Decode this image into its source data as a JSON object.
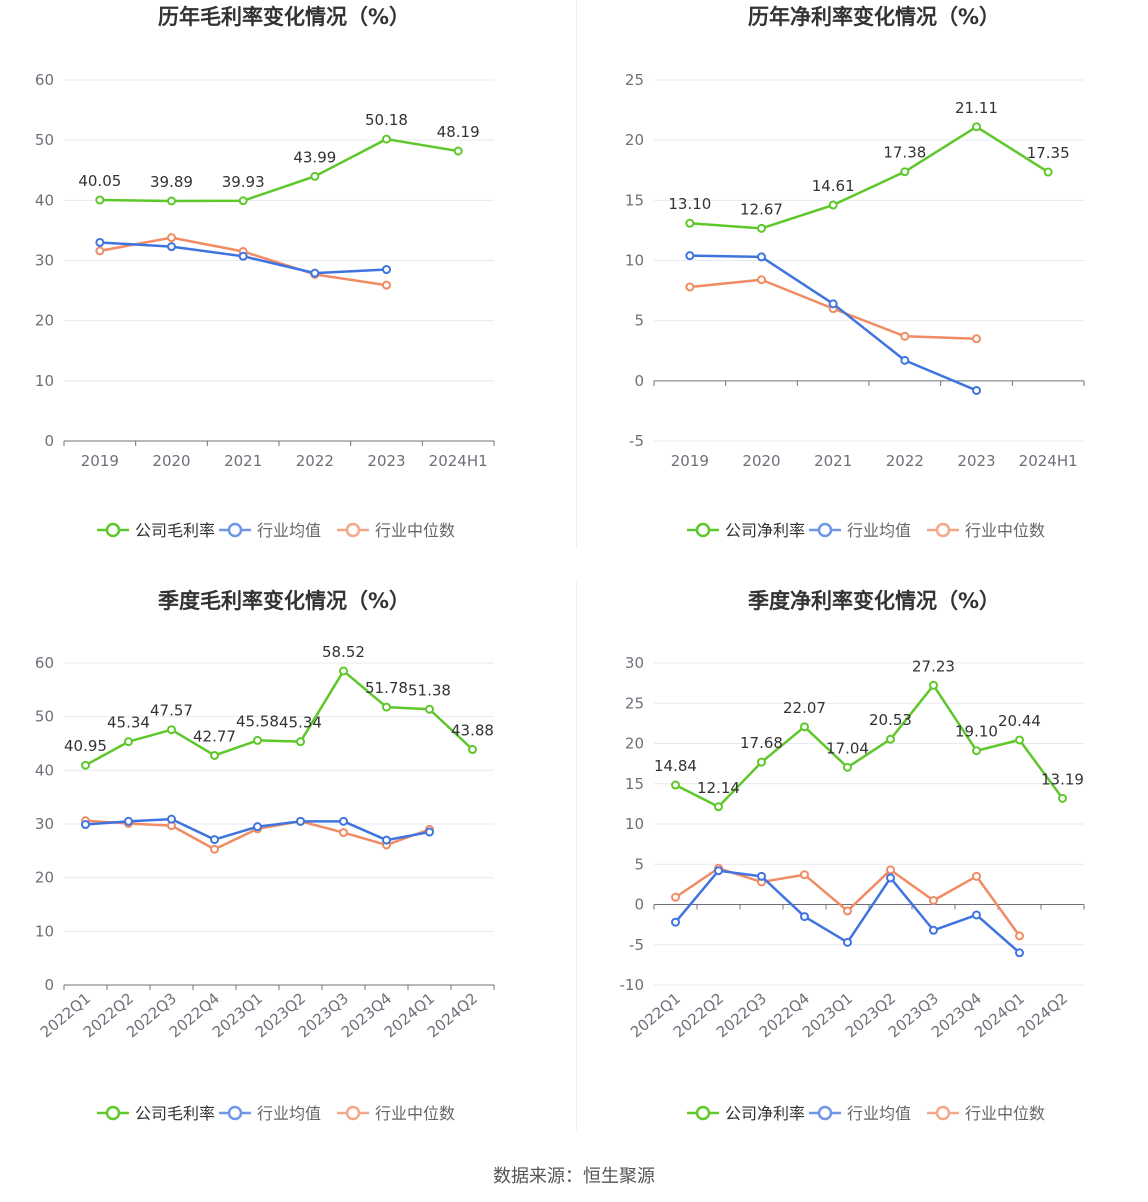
{
  "colors": {
    "company": "#5ec72a",
    "industry_avg": "#3f74e0",
    "industry_median": "#f08b63",
    "axis_text": "#6e7079",
    "grid": "#e6e9f2",
    "title": "#333333"
  },
  "legend": {
    "industry_avg": "行业均值",
    "industry_median": "行业中位数"
  },
  "footer": {
    "source": "数据来源：恒生聚源"
  },
  "chart_data": [
    {
      "type": "line",
      "title": "历年毛利率变化情况（%）",
      "company_label": "公司毛利率",
      "categories": [
        "2019",
        "2020",
        "2021",
        "2022",
        "2023",
        "2024H1"
      ],
      "ylim": [
        0,
        60
      ],
      "yticks": [
        0,
        10,
        20,
        30,
        40,
        50,
        60
      ],
      "rotate_x_labels": false,
      "series": [
        {
          "key": "company",
          "values": [
            40.05,
            39.89,
            39.93,
            43.99,
            50.18,
            48.19
          ],
          "labels": [
            "40.05",
            "39.89",
            "39.93",
            "43.99",
            "50.18",
            "48.19"
          ]
        },
        {
          "key": "industry_avg",
          "values": [
            33.0,
            32.3,
            30.7,
            27.9,
            28.5,
            null
          ]
        },
        {
          "key": "industry_median",
          "values": [
            31.6,
            33.8,
            31.5,
            27.7,
            25.9,
            null
          ]
        }
      ]
    },
    {
      "type": "line",
      "title": "历年净利率变化情况（%）",
      "company_label": "公司净利率",
      "categories": [
        "2019",
        "2020",
        "2021",
        "2022",
        "2023",
        "2024H1"
      ],
      "ylim": [
        -5,
        25
      ],
      "yticks": [
        -5,
        0,
        5,
        10,
        15,
        20,
        25
      ],
      "rotate_x_labels": false,
      "series": [
        {
          "key": "company",
          "values": [
            13.1,
            12.67,
            14.61,
            17.38,
            21.11,
            17.35
          ],
          "labels": [
            "13.10",
            "12.67",
            "14.61",
            "17.38",
            "21.11",
            "17.35"
          ]
        },
        {
          "key": "industry_avg",
          "values": [
            10.4,
            10.3,
            6.4,
            1.7,
            -0.8,
            null
          ]
        },
        {
          "key": "industry_median",
          "values": [
            7.8,
            8.4,
            6.0,
            3.7,
            3.5,
            null
          ]
        }
      ]
    },
    {
      "type": "line",
      "title": "季度毛利率变化情况（%）",
      "company_label": "公司毛利率",
      "categories": [
        "2022Q1",
        "2022Q2",
        "2022Q3",
        "2022Q4",
        "2023Q1",
        "2023Q2",
        "2023Q3",
        "2023Q4",
        "2024Q1",
        "2024Q2"
      ],
      "ylim": [
        0,
        60
      ],
      "yticks": [
        0,
        10,
        20,
        30,
        40,
        50,
        60
      ],
      "rotate_x_labels": true,
      "series": [
        {
          "key": "company",
          "values": [
            40.95,
            45.34,
            47.57,
            42.77,
            45.58,
            45.34,
            58.52,
            51.78,
            51.38,
            43.88
          ],
          "labels": [
            "40.95",
            "45.34",
            "47.57",
            "42.77",
            "45.58",
            "45.34",
            "58.52",
            "51.78",
            "51.38",
            "43.88"
          ]
        },
        {
          "key": "industry_avg",
          "values": [
            29.9,
            30.5,
            30.9,
            27.1,
            29.5,
            30.5,
            30.5,
            27.0,
            28.5,
            null
          ]
        },
        {
          "key": "industry_median",
          "values": [
            30.6,
            30.1,
            29.7,
            25.3,
            29.1,
            30.5,
            28.4,
            26.1,
            29.0,
            null
          ]
        }
      ]
    },
    {
      "type": "line",
      "title": "季度净利率变化情况（%）",
      "company_label": "公司净利率",
      "categories": [
        "2022Q1",
        "2022Q2",
        "2022Q3",
        "2022Q4",
        "2023Q1",
        "2023Q2",
        "2023Q3",
        "2023Q4",
        "2024Q1",
        "2024Q2"
      ],
      "ylim": [
        -10,
        30
      ],
      "yticks": [
        -10,
        -5,
        0,
        5,
        10,
        15,
        20,
        25,
        30
      ],
      "rotate_x_labels": true,
      "series": [
        {
          "key": "company",
          "values": [
            14.84,
            12.14,
            17.68,
            22.07,
            17.04,
            20.53,
            27.23,
            19.1,
            20.44,
            13.19
          ],
          "labels": [
            "14.84",
            "12.14",
            "17.68",
            "22.07",
            "17.04",
            "20.53",
            "27.23",
            "19.10",
            "20.44",
            "13.19"
          ]
        },
        {
          "key": "industry_avg",
          "values": [
            -2.2,
            4.2,
            3.5,
            -1.5,
            -4.7,
            3.3,
            -3.2,
            -1.3,
            -6.0,
            null
          ]
        },
        {
          "key": "industry_median",
          "values": [
            0.9,
            4.5,
            2.8,
            3.7,
            -0.8,
            4.3,
            0.5,
            3.5,
            -3.9,
            null
          ]
        }
      ]
    }
  ]
}
